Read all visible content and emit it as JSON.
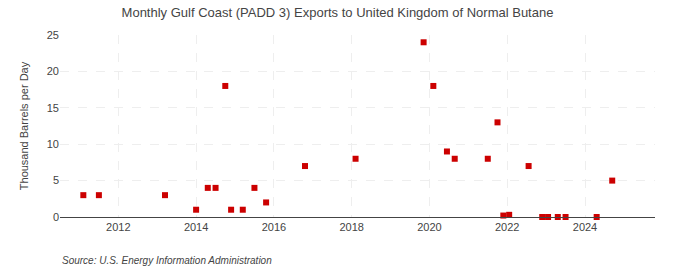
{
  "chart_data": {
    "type": "scatter",
    "title": "Monthly Gulf Coast (PADD 3) Exports to United Kingdom of Normal Butane",
    "ylabel": "Thousand Barrels per Day",
    "annotations": [
      "Source: U.S. Energy Information Administration"
    ],
    "color": "#cc0000",
    "marker": "square",
    "x": [
      2011.1,
      2011.5,
      2013.2,
      2014.0,
      2014.3,
      2014.5,
      2014.75,
      2014.9,
      2015.2,
      2015.5,
      2015.8,
      2016.8,
      2018.1,
      2019.85,
      2020.1,
      2020.45,
      2020.65,
      2021.5,
      2021.75,
      2021.9,
      2022.05,
      2022.55,
      2022.9,
      2023.05,
      2023.3,
      2023.5,
      2024.3,
      2024.7
    ],
    "values": [
      3.0,
      3.0,
      3.0,
      1.0,
      4.0,
      4.0,
      18.0,
      1.0,
      1.0,
      4.0,
      2.0,
      7.0,
      8.0,
      24.0,
      18.0,
      9.0,
      8.0,
      8.0,
      13.0,
      0.2,
      0.3,
      7.0,
      0.0,
      0.0,
      0.0,
      0.0,
      0.0,
      5.0
    ],
    "xlim": [
      2010.5,
      2025.8
    ],
    "ylim": [
      0,
      25
    ],
    "xticks": [
      2012,
      2014,
      2016,
      2018,
      2020,
      2022,
      2024
    ],
    "yticks": [
      0,
      5,
      10,
      15,
      20,
      25
    ],
    "grid": true
  }
}
